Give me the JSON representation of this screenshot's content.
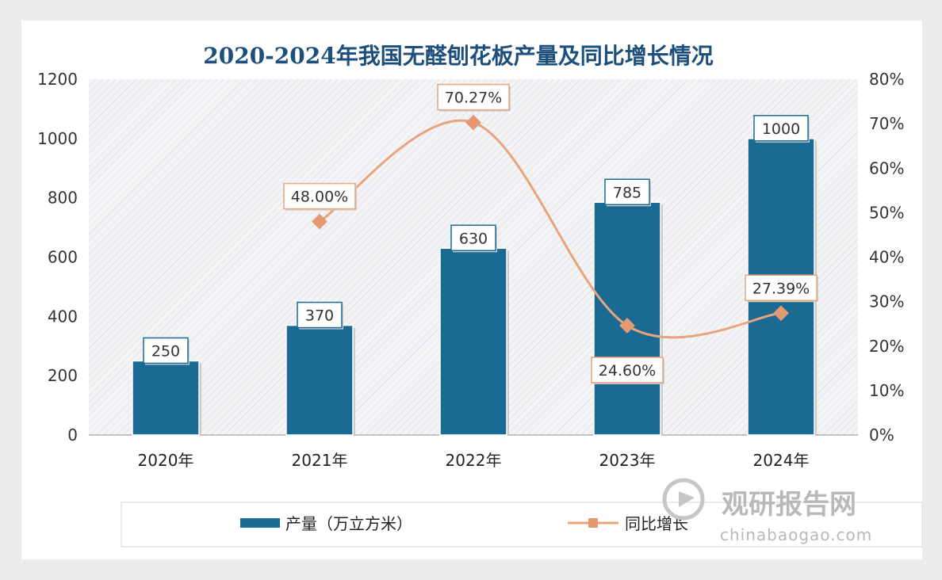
{
  "chart_data": {
    "type": "bar",
    "title": "2020-2024年我国无醛刨花板产量及同比增长情况",
    "categories": [
      "2020年",
      "2021年",
      "2022年",
      "2023年",
      "2024年"
    ],
    "series": [
      {
        "name": "产量（万立方米）",
        "type": "bar",
        "axis": "left",
        "values": [
          250,
          370,
          630,
          785,
          1000
        ],
        "labels": [
          "250",
          "370",
          "630",
          "785",
          "1000"
        ]
      },
      {
        "name": "同比增长",
        "type": "line",
        "axis": "right",
        "values": [
          null,
          48.0,
          70.27,
          24.6,
          27.39
        ],
        "labels": [
          "",
          "48.00%",
          "70.27%",
          "24.60%",
          "27.39%"
        ]
      }
    ],
    "y_left": {
      "ylim": [
        0,
        1200
      ],
      "ticks": [
        "0",
        "200",
        "400",
        "600",
        "800",
        "1000",
        "1200"
      ]
    },
    "y_right": {
      "ylim": [
        0,
        80
      ],
      "ticks": [
        "0%",
        "10%",
        "20%",
        "30%",
        "40%",
        "50%",
        "60%",
        "70%",
        "80%"
      ]
    },
    "legend_position": "bottom",
    "colors": {
      "bar": "#1b6a93",
      "line": "#e8a47c",
      "marker": "#e39a70",
      "title": "#1c4f7c"
    }
  },
  "watermark": {
    "brand": "观研报告网",
    "url": "chinabaogao.com"
  }
}
